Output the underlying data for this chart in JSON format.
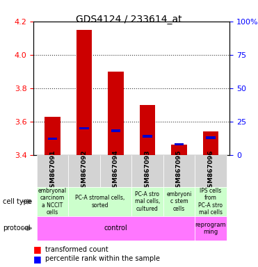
{
  "title": "GDS4124 / 233614_at",
  "samples": [
    "GSM867091",
    "GSM867092",
    "GSM867094",
    "GSM867093",
    "GSM867095",
    "GSM867096"
  ],
  "transformed_counts": [
    3.63,
    4.15,
    3.9,
    3.7,
    3.46,
    3.54
  ],
  "percentile_ranks": [
    12,
    20,
    18,
    14,
    8,
    13
  ],
  "bar_bottom": 3.4,
  "ylim_left": [
    3.4,
    4.2
  ],
  "ylim_right": [
    0,
    100
  ],
  "yticks_left": [
    3.4,
    3.6,
    3.8,
    4.0,
    4.2
  ],
  "yticks_right": [
    0,
    25,
    50,
    75,
    100
  ],
  "bar_color": "#cc0000",
  "percentile_color": "#0000cc",
  "bar_width": 0.5,
  "cell_types": [
    "embryonal\ncarcinom\na NCCIT\ncells",
    "PC-A stromal cells,\nsorted",
    "PC-A stro\nmal cells,\ncultured",
    "embryoni\nc stem\ncells",
    "IPS cells\nfrom\nPC-A stro\nmal cells"
  ],
  "cell_type_colors": [
    "#ccffcc",
    "#ccffcc",
    "#ccffcc",
    "#ccffcc",
    "#ccffcc"
  ],
  "cell_type_col_spans": [
    [
      0
    ],
    [
      1,
      2
    ],
    [
      3
    ],
    [
      4
    ],
    [
      5
    ]
  ],
  "protocol_labels": [
    "control",
    "reprogram\nming"
  ],
  "protocol_color": "#ff77ff",
  "protocol_col_spans": [
    [
      0,
      1,
      2,
      3,
      4
    ],
    [
      5
    ]
  ],
  "grid_color": "#333333",
  "background_color": "#d3d3d3"
}
